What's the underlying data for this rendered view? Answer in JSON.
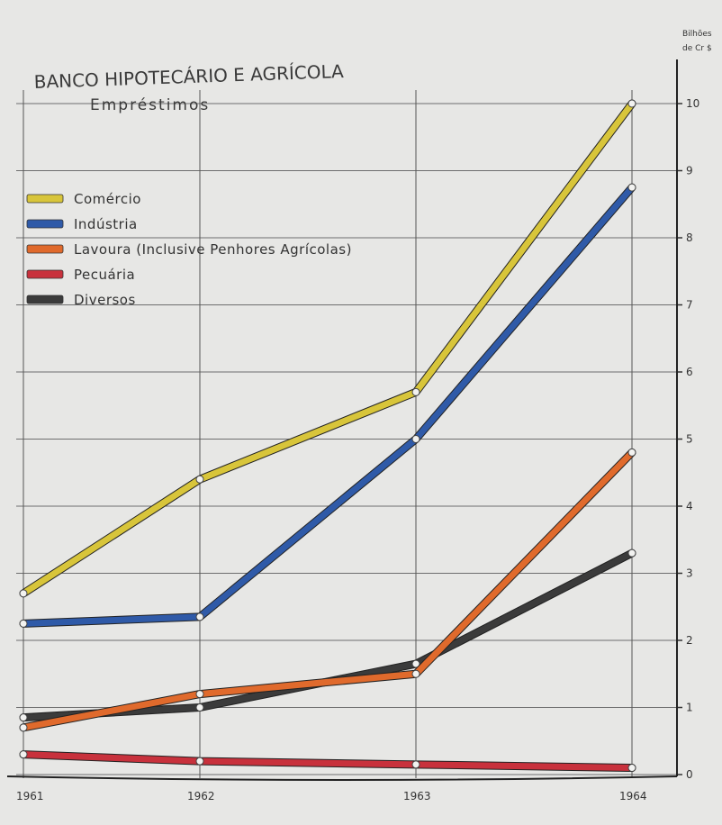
{
  "chart_data": {
    "type": "line",
    "title": "BANCO HIPOTECÁRIO E AGRÍCOLA",
    "subtitle": "Empréstimos",
    "unit_label_line1": "Bilhões",
    "unit_label_line2": "de Cr $",
    "x": [
      "1961",
      "1962",
      "1963",
      "1964"
    ],
    "y_ticks": [
      "0",
      "1",
      "2",
      "3",
      "4",
      "5",
      "6",
      "7",
      "8",
      "9",
      "10"
    ],
    "ylim": [
      0,
      10
    ],
    "grid": true,
    "legend_position": "top-left",
    "series": [
      {
        "name": "Comércio",
        "color": "#d8c53a",
        "values": [
          2.7,
          4.4,
          5.7,
          10.0
        ]
      },
      {
        "name": "Indústria",
        "color": "#2f5aa8",
        "values": [
          2.25,
          2.35,
          5.0,
          8.75
        ]
      },
      {
        "name": "Lavoura (Inclusive Penhores Agrícolas)",
        "color": "#e06a2c",
        "values": [
          0.7,
          1.2,
          1.5,
          4.8
        ]
      },
      {
        "name": "Pecuária",
        "color": "#c8313c",
        "values": [
          0.3,
          0.2,
          0.15,
          0.1
        ]
      },
      {
        "name": "Diversos",
        "color": "#3b3b3b",
        "values": [
          0.85,
          1.0,
          1.65,
          3.3
        ]
      }
    ]
  }
}
